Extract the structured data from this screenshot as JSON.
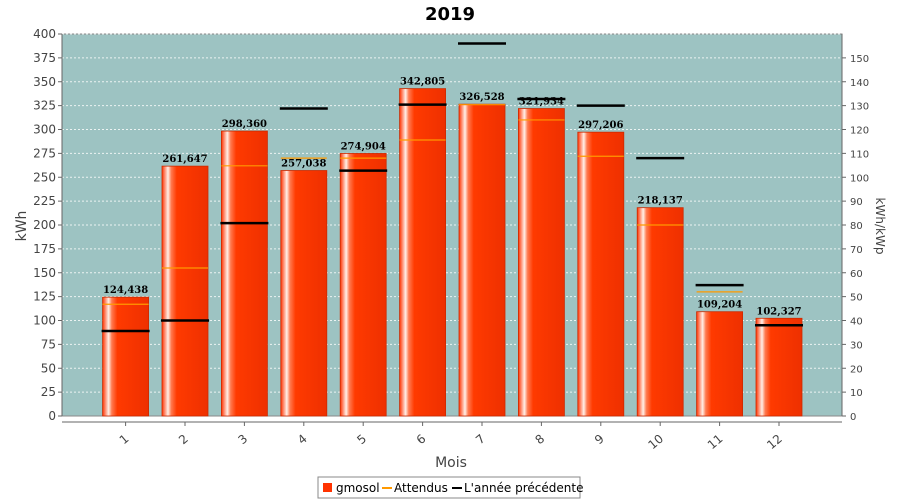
{
  "chart_data": {
    "type": "bar",
    "title": "2019",
    "xlabel": "Mois",
    "ylabel": "kWh",
    "y2label": "kWh/kWp",
    "categories": [
      "1",
      "2",
      "3",
      "4",
      "5",
      "6",
      "7",
      "8",
      "9",
      "10",
      "11",
      "12"
    ],
    "ylim": [
      0,
      400
    ],
    "yticks": [
      0,
      25,
      50,
      75,
      100,
      125,
      150,
      175,
      200,
      225,
      250,
      275,
      300,
      325,
      350,
      375,
      400
    ],
    "y2lim": [
      0,
      160
    ],
    "y2ticks": [
      0,
      10,
      20,
      30,
      40,
      50,
      60,
      70,
      80,
      90,
      100,
      110,
      120,
      130,
      140,
      150
    ],
    "grid": true,
    "legend_position": "bottom",
    "series": [
      {
        "name": "gmosol",
        "kind": "bar",
        "color": "#ff3300",
        "values": [
          124438,
          261647,
          298360,
          257038,
          274904,
          342805,
          326528,
          321934,
          297206,
          218137,
          109204,
          102327
        ],
        "labels": [
          "124,438",
          "261,647",
          "298,360",
          "257,038",
          "274,904",
          "342,805",
          "326,528",
          "321,934",
          "297,206",
          "218,137",
          "109,204",
          "102,327"
        ]
      },
      {
        "name": "Attendus",
        "kind": "marker",
        "color": "#ff9900",
        "values": [
          117000,
          155000,
          262000,
          270000,
          270000,
          289000,
          326000,
          310000,
          272000,
          200000,
          130000,
          95000
        ]
      },
      {
        "name": "L'année précédente",
        "kind": "marker",
        "color": "#000000",
        "values": [
          89000,
          100000,
          202000,
          322000,
          257000,
          326000,
          390000,
          332000,
          325000,
          270000,
          137000,
          95000
        ]
      }
    ]
  }
}
